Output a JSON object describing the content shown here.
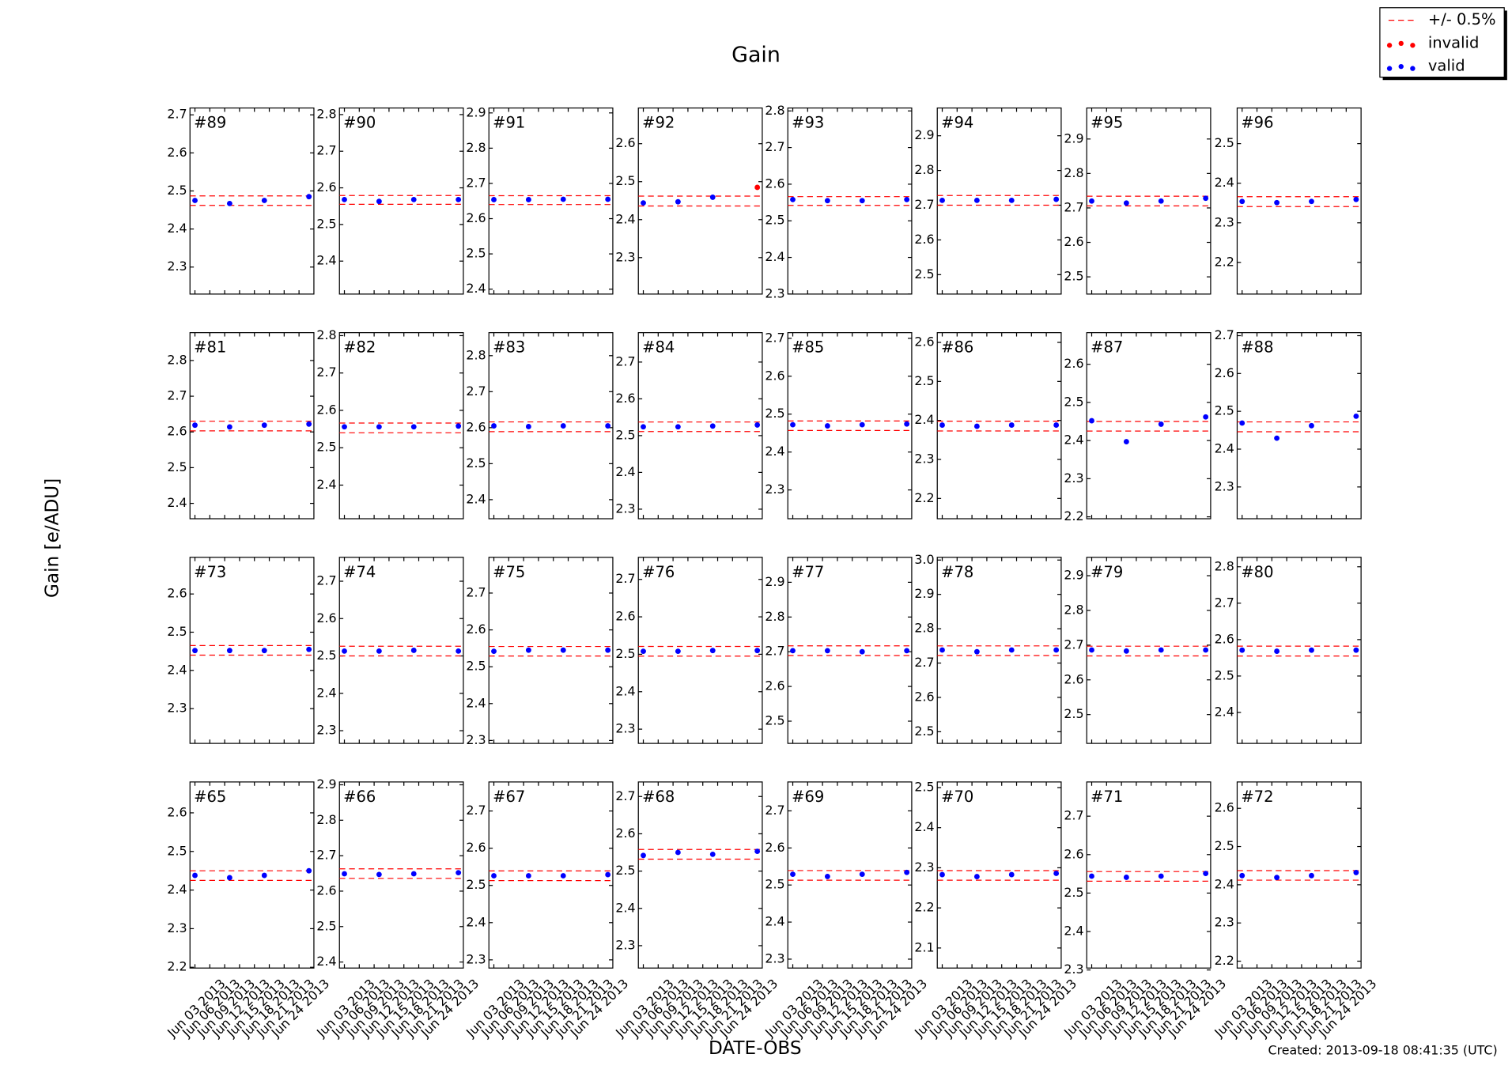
{
  "chart_data": {
    "type": "scatter",
    "title": "Gain",
    "xlabel": "DATE-OBS",
    "ylabel": "Gain [e/ADU]",
    "footnote": "Created: 2013-09-18 08:41:35 (UTC)",
    "legend": "upper right",
    "series": [
      {
        "name": "+/- 0.5%",
        "color": "#ff0000"
      },
      {
        "name": "invalid",
        "color": "#ff0000"
      },
      {
        "name": "valid",
        "color": "#0000ff"
      }
    ],
    "x": [
      "2013-06-03",
      "2013-06-10",
      "2013-06-17",
      "2013-06-26"
    ],
    "xlim": [
      "2013-06-02",
      "2013-06-27"
    ],
    "xticks": [
      {
        "value": "2013-06-03",
        "label": "Jun 03 2013"
      },
      {
        "value": "2013-06-06",
        "label": "Jun 06 2013"
      },
      {
        "value": "2013-06-09",
        "label": "Jun 09 2013"
      },
      {
        "value": "2013-06-12",
        "label": "Jun 12 2013"
      },
      {
        "value": "2013-06-15",
        "label": "Jun 15 2013"
      },
      {
        "value": "2013-06-18",
        "label": "Jun 18 2013"
      },
      {
        "value": "2013-06-21",
        "label": "Jun 21 2013"
      },
      {
        "value": "2013-06-24",
        "label": "Jun 24 2013"
      }
    ],
    "panels": [
      {
        "label": "#89",
        "ylim": [
          2.229,
          2.718
        ],
        "yticks": [
          2.3,
          2.4,
          2.5,
          2.6,
          2.7
        ],
        "values": [
          2.475,
          2.467,
          2.475,
          2.485
        ],
        "band": [
          2.462,
          2.487
        ],
        "valid": [
          true,
          true,
          true,
          true
        ]
      },
      {
        "label": "#90",
        "ylim": [
          2.31,
          2.818
        ],
        "yticks": [
          2.4,
          2.5,
          2.6,
          2.7,
          2.8
        ],
        "values": [
          2.568,
          2.563,
          2.568,
          2.568
        ],
        "band": [
          2.555,
          2.579
        ],
        "valid": [
          true,
          true,
          true,
          true
        ]
      },
      {
        "label": "#91",
        "ylim": [
          2.386,
          2.914
        ],
        "yticks": [
          2.4,
          2.5,
          2.6,
          2.7,
          2.8,
          2.9
        ],
        "values": [
          2.654,
          2.654,
          2.655,
          2.655
        ],
        "band": [
          2.64,
          2.665
        ],
        "valid": [
          true,
          true,
          true,
          true
        ]
      },
      {
        "label": "#92",
        "ylim": [
          2.204,
          2.694
        ],
        "yticks": [
          2.3,
          2.4,
          2.5,
          2.6
        ],
        "values": [
          2.444,
          2.447,
          2.459,
          2.485
        ],
        "band": [
          2.436,
          2.462
        ],
        "valid": [
          true,
          true,
          true,
          false
        ]
      },
      {
        "label": "#93",
        "ylim": [
          2.3,
          2.808
        ],
        "yticks": [
          2.3,
          2.4,
          2.5,
          2.6,
          2.7,
          2.8
        ],
        "values": [
          2.558,
          2.555,
          2.555,
          2.558
        ],
        "band": [
          2.542,
          2.566
        ],
        "valid": [
          true,
          true,
          true,
          true
        ]
      },
      {
        "label": "#94",
        "ylim": [
          2.444,
          2.98
        ],
        "yticks": [
          2.5,
          2.6,
          2.7,
          2.8,
          2.9
        ],
        "values": [
          2.714,
          2.714,
          2.714,
          2.717
        ],
        "band": [
          2.7,
          2.728
        ],
        "valid": [
          true,
          true,
          true,
          true
        ]
      },
      {
        "label": "#95",
        "ylim": [
          2.45,
          2.99
        ],
        "yticks": [
          2.5,
          2.6,
          2.7,
          2.8,
          2.9
        ],
        "values": [
          2.72,
          2.714,
          2.72,
          2.728
        ],
        "band": [
          2.706,
          2.734
        ],
        "valid": [
          true,
          true,
          true,
          true
        ]
      },
      {
        "label": "#96",
        "ylim": [
          2.12,
          2.59
        ],
        "yticks": [
          2.2,
          2.3,
          2.4,
          2.5
        ],
        "values": [
          2.354,
          2.351,
          2.354,
          2.359
        ],
        "band": [
          2.341,
          2.366
        ],
        "valid": [
          true,
          true,
          true,
          true
        ]
      },
      {
        "label": "#81",
        "ylim": [
          2.357,
          2.878
        ],
        "yticks": [
          2.4,
          2.5,
          2.6,
          2.7,
          2.8
        ],
        "values": [
          2.619,
          2.614,
          2.619,
          2.622
        ],
        "band": [
          2.603,
          2.63
        ],
        "valid": [
          true,
          true,
          true,
          true
        ]
      },
      {
        "label": "#82",
        "ylim": [
          2.31,
          2.808
        ],
        "yticks": [
          2.4,
          2.5,
          2.6,
          2.7,
          2.8
        ],
        "values": [
          2.556,
          2.556,
          2.556,
          2.558
        ],
        "band": [
          2.54,
          2.566
        ],
        "valid": [
          true,
          true,
          true,
          true
        ]
      },
      {
        "label": "#83",
        "ylim": [
          2.347,
          2.864
        ],
        "yticks": [
          2.4,
          2.5,
          2.6,
          2.7,
          2.8
        ],
        "values": [
          2.605,
          2.603,
          2.605,
          2.605
        ],
        "band": [
          2.589,
          2.616
        ],
        "valid": [
          true,
          true,
          true,
          true
        ]
      },
      {
        "label": "#84",
        "ylim": [
          2.274,
          2.78
        ],
        "yticks": [
          2.3,
          2.4,
          2.5,
          2.6,
          2.7
        ],
        "values": [
          2.524,
          2.524,
          2.526,
          2.529
        ],
        "band": [
          2.511,
          2.537
        ],
        "valid": [
          true,
          true,
          true,
          true
        ]
      },
      {
        "label": "#85",
        "ylim": [
          2.224,
          2.715
        ],
        "yticks": [
          2.3,
          2.4,
          2.5,
          2.6,
          2.7
        ],
        "values": [
          2.472,
          2.469,
          2.472,
          2.474
        ],
        "band": [
          2.457,
          2.482
        ],
        "valid": [
          true,
          true,
          true,
          true
        ]
      },
      {
        "label": "#86",
        "ylim": [
          2.148,
          2.625
        ],
        "yticks": [
          2.2,
          2.3,
          2.4,
          2.5,
          2.6
        ],
        "values": [
          2.388,
          2.385,
          2.388,
          2.388
        ],
        "band": [
          2.373,
          2.398
        ],
        "valid": [
          true,
          true,
          true,
          true
        ]
      },
      {
        "label": "#87",
        "ylim": [
          2.195,
          2.683
        ],
        "yticks": [
          2.2,
          2.3,
          2.4,
          2.5,
          2.6
        ],
        "values": [
          2.452,
          2.397,
          2.443,
          2.462
        ],
        "band": [
          2.425,
          2.45
        ],
        "valid": [
          true,
          true,
          true,
          true
        ]
      },
      {
        "label": "#88",
        "ylim": [
          2.216,
          2.708
        ],
        "yticks": [
          2.3,
          2.4,
          2.5,
          2.6,
          2.7
        ],
        "values": [
          2.469,
          2.429,
          2.462,
          2.487
        ],
        "band": [
          2.446,
          2.472
        ],
        "valid": [
          true,
          true,
          true,
          true
        ]
      },
      {
        "label": "#73",
        "ylim": [
          2.209,
          2.696
        ],
        "yticks": [
          2.3,
          2.4,
          2.5,
          2.6
        ],
        "values": [
          2.452,
          2.452,
          2.452,
          2.455
        ],
        "band": [
          2.44,
          2.465
        ],
        "valid": [
          true,
          true,
          true,
          true
        ]
      },
      {
        "label": "#74",
        "ylim": [
          2.266,
          2.764
        ],
        "yticks": [
          2.3,
          2.4,
          2.5,
          2.6,
          2.7
        ],
        "values": [
          2.513,
          2.513,
          2.515,
          2.513
        ],
        "band": [
          2.5,
          2.526
        ],
        "valid": [
          true,
          true,
          true,
          true
        ]
      },
      {
        "label": "#75",
        "ylim": [
          2.292,
          2.797
        ],
        "yticks": [
          2.3,
          2.4,
          2.5,
          2.6,
          2.7
        ],
        "values": [
          2.542,
          2.545,
          2.545,
          2.545
        ],
        "band": [
          2.529,
          2.555
        ],
        "valid": [
          true,
          true,
          true,
          true
        ]
      },
      {
        "label": "#76",
        "ylim": [
          2.262,
          2.759
        ],
        "yticks": [
          2.3,
          2.4,
          2.5,
          2.6,
          2.7
        ],
        "values": [
          2.508,
          2.508,
          2.51,
          2.51
        ],
        "band": [
          2.495,
          2.521
        ],
        "valid": [
          true,
          true,
          true,
          true
        ]
      },
      {
        "label": "#77",
        "ylim": [
          2.436,
          2.972
        ],
        "yticks": [
          2.5,
          2.6,
          2.7,
          2.8,
          2.9
        ],
        "values": [
          2.703,
          2.703,
          2.7,
          2.703
        ],
        "band": [
          2.689,
          2.717
        ],
        "valid": [
          true,
          true,
          true,
          true
        ]
      },
      {
        "label": "#78",
        "ylim": [
          2.466,
          3.008
        ],
        "yticks": [
          2.5,
          2.6,
          2.7,
          2.8,
          2.9,
          {
            "value": 3,
            "label": "3.0"
          }
        ],
        "values": [
          2.738,
          2.733,
          2.738,
          2.738
        ],
        "band": [
          2.722,
          2.75
        ],
        "valid": [
          true,
          true,
          true,
          true
        ]
      },
      {
        "label": "#79",
        "ylim": [
          2.417,
          2.953
        ],
        "yticks": [
          2.5,
          2.6,
          2.7,
          2.8,
          2.9
        ],
        "values": [
          2.686,
          2.683,
          2.686,
          2.686
        ],
        "band": [
          2.669,
          2.697
        ],
        "valid": [
          true,
          true,
          true,
          true
        ]
      },
      {
        "label": "#80",
        "ylim": [
          2.315,
          2.826
        ],
        "yticks": [
          2.4,
          2.5,
          2.6,
          2.7,
          2.8
        ],
        "values": [
          2.571,
          2.568,
          2.571,
          2.571
        ],
        "band": [
          2.555,
          2.582
        ],
        "valid": [
          true,
          true,
          true,
          true
        ]
      },
      {
        "label": "#65",
        "ylim": [
          2.198,
          2.68
        ],
        "yticks": [
          2.2,
          2.3,
          2.4,
          2.5,
          2.6
        ],
        "values": [
          2.438,
          2.432,
          2.438,
          2.45
        ],
        "band": [
          2.425,
          2.45
        ],
        "valid": [
          true,
          true,
          true,
          true
        ]
      },
      {
        "label": "#66",
        "ylim": [
          2.383,
          2.908
        ],
        "yticks": [
          2.4,
          2.5,
          2.6,
          2.7,
          2.8,
          2.9
        ],
        "values": [
          2.649,
          2.647,
          2.649,
          2.652
        ],
        "band": [
          2.636,
          2.663
        ],
        "valid": [
          true,
          true,
          true,
          true
        ]
      },
      {
        "label": "#67",
        "ylim": [
          2.278,
          2.778
        ],
        "yticks": [
          2.3,
          2.4,
          2.5,
          2.6,
          2.7
        ],
        "values": [
          2.526,
          2.526,
          2.526,
          2.529
        ],
        "band": [
          2.513,
          2.539
        ],
        "valid": [
          true,
          true,
          true,
          true
        ]
      },
      {
        "label": "#68",
        "ylim": [
          2.24,
          2.739
        ],
        "yticks": [
          2.3,
          2.4,
          2.5,
          2.6,
          2.7
        ],
        "values": [
          2.542,
          2.55,
          2.545,
          2.553
        ],
        "band": [
          2.532,
          2.558
        ],
        "valid": [
          true,
          true,
          true,
          true
        ]
      },
      {
        "label": "#69",
        "ylim": [
          2.276,
          2.778
        ],
        "yticks": [
          2.3,
          2.4,
          2.5,
          2.6,
          2.7
        ],
        "values": [
          2.529,
          2.523,
          2.529,
          2.534
        ],
        "band": [
          2.513,
          2.539
        ],
        "valid": [
          true,
          true,
          true,
          true
        ]
      },
      {
        "label": "#70",
        "ylim": [
          2.05,
          2.514
        ],
        "yticks": [
          2.1,
          2.2,
          2.3,
          2.4,
          2.5
        ],
        "values": [
          2.283,
          2.278,
          2.283,
          2.286
        ],
        "band": [
          2.269,
          2.293
        ],
        "valid": [
          true,
          true,
          true,
          true
        ]
      },
      {
        "label": "#71",
        "ylim": [
          2.305,
          2.789
        ],
        "yticks": [
          2.3,
          2.4,
          2.5,
          2.6,
          2.7
        ],
        "values": [
          2.544,
          2.541,
          2.544,
          2.551
        ],
        "band": [
          2.531,
          2.556
        ],
        "valid": [
          true,
          true,
          true,
          true
        ]
      },
      {
        "label": "#72",
        "ylim": [
          2.182,
          2.669
        ],
        "yticks": [
          2.2,
          2.3,
          2.4,
          2.5,
          2.6
        ],
        "values": [
          2.424,
          2.419,
          2.424,
          2.432
        ],
        "band": [
          2.412,
          2.437
        ],
        "valid": [
          true,
          true,
          true,
          true
        ]
      }
    ]
  }
}
